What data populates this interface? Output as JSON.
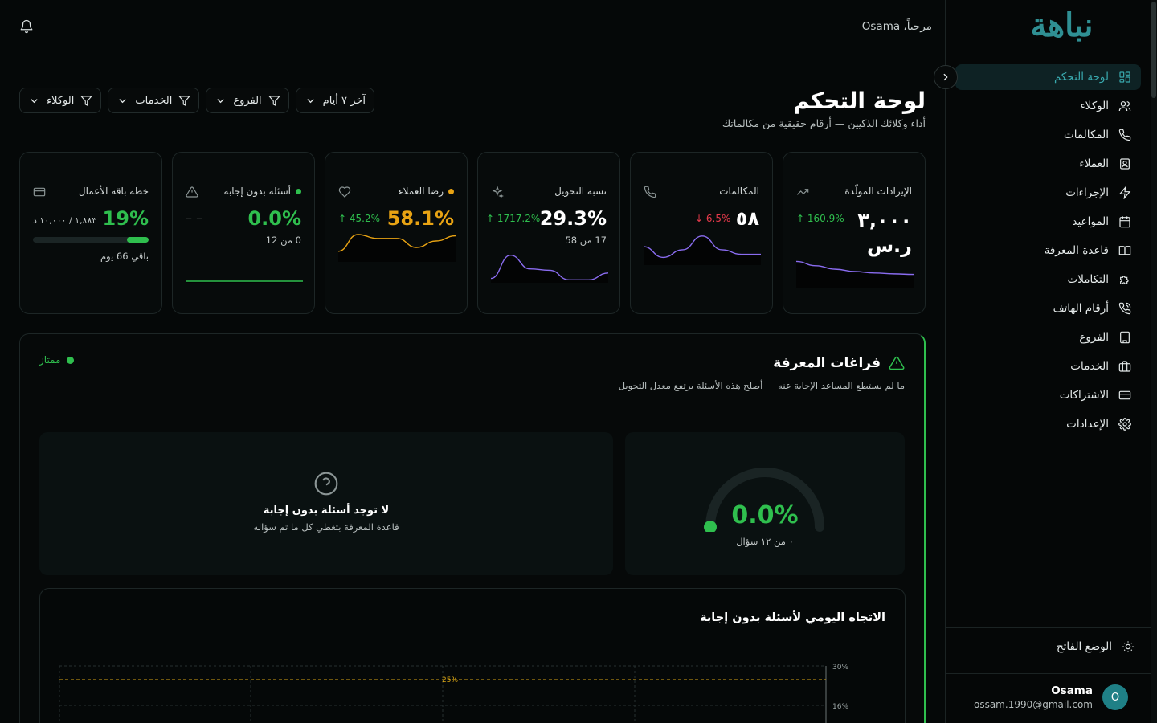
{
  "app": {
    "logo_text": "نباهة",
    "brand_color": "#2f8f93",
    "accent_color": "#2fbf4e"
  },
  "header": {
    "greeting": "مرحباً، Osama",
    "notifications_icon": "bell-icon"
  },
  "sidebar": {
    "items": [
      {
        "label": "لوحة التحكم",
        "icon": "dashboard-icon",
        "active": true
      },
      {
        "label": "الوكلاء",
        "icon": "users-icon"
      },
      {
        "label": "المكالمات",
        "icon": "phone-icon"
      },
      {
        "label": "العملاء",
        "icon": "contact-icon"
      },
      {
        "label": "الإجراءات",
        "icon": "zap-icon"
      },
      {
        "label": "المواعيد",
        "icon": "calendar-icon"
      },
      {
        "label": "قاعدة المعرفة",
        "icon": "book-icon"
      },
      {
        "label": "التكاملات",
        "icon": "puzzle-icon"
      },
      {
        "label": "أرقام الهاتف",
        "icon": "phone-call-icon"
      },
      {
        "label": "الفروع",
        "icon": "building-icon"
      },
      {
        "label": "الخدمات",
        "icon": "briefcase-icon"
      },
      {
        "label": "الاشتراكات",
        "icon": "credit-card-icon"
      },
      {
        "label": "الإعدادات",
        "icon": "settings-icon"
      }
    ],
    "theme_toggle": "الوضع الفاتح",
    "user": {
      "initial": "O",
      "name": "Osama",
      "email": "ossam.1990@gmail.com"
    }
  },
  "page": {
    "title": "لوحة التحكم",
    "subtitle": "أداء وكلائك الذكيين — أرقام حقيقية من مكالماتك"
  },
  "filters": [
    "الوكلاء",
    "الخدمات",
    "الفروع",
    "آخر ٧ أيام"
  ],
  "cards": {
    "revenue": {
      "label": "الإيرادات المولّدة",
      "value_line1": "٣,٠٠٠",
      "value_line2": "ر.س",
      "delta": "↑ 160.9%",
      "trend": [
        0.85,
        0.7,
        0.58,
        0.5,
        0.45,
        0.42,
        0.4
      ]
    },
    "calls": {
      "label": "المكالمات",
      "value": "٥٨",
      "delta": "↓ 6.5%",
      "trend": [
        0.55,
        0.2,
        0.45,
        0.9,
        0.45,
        0.3,
        0.3
      ]
    },
    "conversion": {
      "label": "نسبة التحويل",
      "value": "29.3%",
      "delta": "↑ 1717.2%",
      "sub": "17 من 58",
      "trend": [
        0.1,
        0.95,
        0.45,
        0.4,
        0.05,
        0.05,
        0.3
      ]
    },
    "satisfaction": {
      "label": "رضا العملاء",
      "value": "58.1%",
      "delta": "↑ 45.2%",
      "trend": [
        0.35,
        1.0,
        0.85,
        0.85,
        0.5,
        0.75,
        0.95
      ]
    },
    "unanswered": {
      "label": "أسئلة بدون إجابة",
      "value": "0.0%",
      "delta": "– –",
      "sub": "0 من 12",
      "trend": [
        0,
        0,
        0,
        0,
        0,
        0,
        0
      ]
    },
    "plan": {
      "label": "خطة باقة الأعمال",
      "value": "19%",
      "usage": "١,٨٨٣ / ١٠,٠٠٠ د",
      "progress": 0.19,
      "remaining": "باقي 66 يوم"
    }
  },
  "knowledge_gaps": {
    "title": "فراغات المعرفة",
    "subtitle": "ما لم يستطع المساعد الإجابة عنه — أصلح هذه الأسئلة يرتفع معدل التحويل",
    "badge": "ممتاز",
    "gauge_value": "0.0%",
    "gauge_sub": "٠ من ١٢ سؤال",
    "gauge_fraction": 0,
    "empty_title": "لا توجد أسئلة بدون إجابة",
    "empty_sub": "قاعدة المعرفة بتغطي كل ما تم سؤاله",
    "trend": {
      "title": "الاتجاه اليومي لأسئلة بدون إجابة",
      "ticks": [
        "30%",
        "16%"
      ],
      "threshold_label": "25%"
    }
  },
  "chart_data": {
    "type": "line",
    "title": "الاتجاه اليومي لأسئلة بدون إجابة",
    "ylim": [
      0,
      30
    ],
    "y_ticks": [
      "30%",
      "16%"
    ],
    "threshold": {
      "value": 25,
      "label": "25%"
    },
    "series": []
  }
}
